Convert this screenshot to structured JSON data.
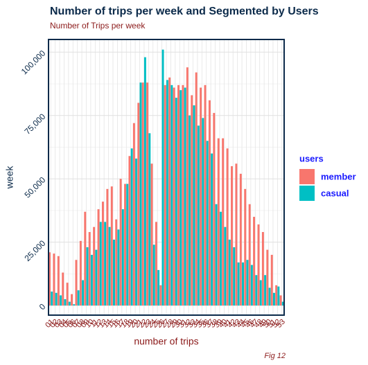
{
  "chart_data": {
    "type": "bar",
    "title": "Number of trips per week and Segmented by Users",
    "subtitle": "Number of Trips per week",
    "x_label": "number of trips",
    "y_label": "week",
    "legend_title": "users",
    "caption": "Fig 12",
    "categories": [
      "01",
      "02",
      "03",
      "04",
      "05",
      "06",
      "07",
      "08",
      "09",
      "10",
      "11",
      "12",
      "13",
      "14",
      "15",
      "16",
      "17",
      "18",
      "19",
      "20",
      "21",
      "22",
      "23",
      "24",
      "25",
      "26",
      "27",
      "28",
      "29",
      "30",
      "31",
      "32",
      "33",
      "34",
      "35",
      "36",
      "37",
      "38",
      "39",
      "40",
      "41",
      "42",
      "43",
      "44",
      "45",
      "46",
      "47",
      "48",
      "49",
      "50",
      "51",
      "52",
      "53"
    ],
    "series": [
      {
        "name": "member",
        "color": "#F8766D",
        "values": [
          21000,
          20500,
          19500,
          13000,
          9000,
          4500,
          18000,
          25500,
          37000,
          29000,
          31000,
          38000,
          41000,
          46000,
          47000,
          34000,
          50000,
          48000,
          59000,
          72000,
          80000,
          88000,
          88000,
          56000,
          33000,
          8000,
          87000,
          90000,
          86000,
          87000,
          87000,
          94000,
          83000,
          92000,
          86000,
          87000,
          81000,
          76000,
          66000,
          66000,
          62000,
          55000,
          56000,
          52000,
          46000,
          40000,
          35000,
          32000,
          29000,
          22000,
          20000,
          8000,
          4000
        ]
      },
      {
        "name": "casual",
        "color": "#00BFC4",
        "values": [
          5500,
          5000,
          4000,
          2500,
          1500,
          500,
          6000,
          10000,
          23000,
          20000,
          22000,
          33000,
          33000,
          31000,
          26000,
          30000,
          38000,
          48000,
          62000,
          58000,
          88000,
          98000,
          68000,
          24000,
          14000,
          101000,
          89000,
          87000,
          82000,
          85000,
          86000,
          75000,
          79000,
          71000,
          74000,
          65000,
          60000,
          40000,
          37000,
          31000,
          26000,
          23000,
          17000,
          17000,
          18000,
          16000,
          12000,
          10000,
          12000,
          7000,
          5000,
          7500,
          1500
        ]
      }
    ],
    "ylim": [
      -3800,
      105000
    ],
    "yticks": [
      0,
      {
        "value": 25000,
        "label": "25,000"
      },
      {
        "value": 50000,
        "label": "50,000"
      },
      {
        "value": 75000,
        "label": "75,000"
      },
      {
        "value": 100000,
        "label": "100,000"
      }
    ],
    "grid": true,
    "legend": "right"
  }
}
